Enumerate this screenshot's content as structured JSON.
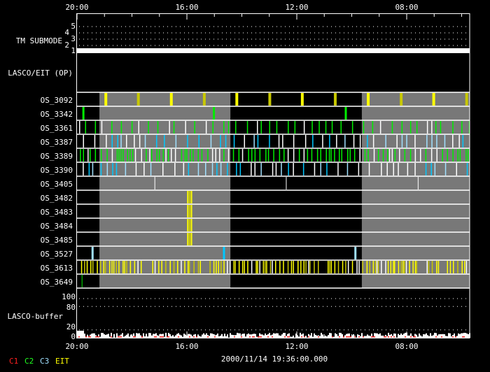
{
  "chart_data": {
    "type": "timeline",
    "time_axis": {
      "tick_labels": [
        "20:00",
        "16:00",
        "12:00",
        "08:00"
      ],
      "start": "20:00",
      "direction": "decreasing-left-to-right",
      "minor_tick_interval_hours": 1
    },
    "footer_time": "2000/11/14 19:36:00.000",
    "legend": [
      {
        "label": "C1",
        "color": "#ff2020"
      },
      {
        "label": "C2",
        "color": "#20ff20"
      },
      {
        "label": "C3",
        "color": "#a0e0ff"
      },
      {
        "label": "EIT",
        "color": "#ffff00"
      }
    ],
    "tm_submode": {
      "label": "TM SUBMODE",
      "levels": [
        "5",
        "4",
        "3",
        "2",
        "1"
      ],
      "value": 1
    },
    "lasco_eit_op": {
      "label": "LASCO/EIT (OP)"
    },
    "shaded_intervals": [
      {
        "from": "19:11",
        "to": "14:25"
      },
      {
        "from": "09:38",
        "to": "end"
      }
    ],
    "colors": {
      "shade": "#787878",
      "yellow": "#ffff00",
      "olive": "#c8c800",
      "green": "#00ee00",
      "cyan": "#00c8ff",
      "lightblue": "#a0e0ff",
      "white": "#ffffff"
    },
    "rows": [
      {
        "name": "OS_3092",
        "events": [
          "18:57",
          "17:46",
          "16:34",
          "15:22",
          "14:11",
          "12:59",
          "11:48",
          "10:36",
          "09:24",
          "08:12",
          "07:01",
          "05:49"
        ],
        "colors": [
          "yellow",
          "olive"
        ],
        "width": 4
      },
      {
        "name": "OS_3342",
        "events": [
          "19:46",
          "15:01",
          "10:13"
        ],
        "colors": [
          "green"
        ],
        "width": 3
      },
      {
        "name": "OS_3361",
        "dense": true,
        "colors": [
          "green",
          "green",
          "white"
        ],
        "spacing": 8
      },
      {
        "name": "OS_3387",
        "dense": true,
        "colors": [
          "cyan",
          "lightblue",
          "white"
        ],
        "spacing": 8
      },
      {
        "name": "OS_3389",
        "dense": true,
        "colors": [
          "green",
          "white",
          "green"
        ],
        "spacing": 4
      },
      {
        "name": "OS_3390",
        "dense": true,
        "colors": [
          "cyan",
          "lightblue",
          "white"
        ],
        "spacing": 8
      },
      {
        "name": "OS_3405",
        "events": [
          "17:10",
          "12:23",
          "07:35"
        ],
        "colors": [
          "white"
        ],
        "width": 1
      },
      {
        "name": "OS_3482",
        "events": [
          "15:58",
          "15:54",
          "15:50"
        ],
        "colors": [
          "yellow",
          "olive"
        ],
        "width": 2
      },
      {
        "name": "OS_3483",
        "events": [
          "15:58",
          "15:54",
          "15:50"
        ],
        "colors": [
          "yellow",
          "olive"
        ],
        "width": 2
      },
      {
        "name": "OS_3484",
        "events": [
          "15:58",
          "15:54",
          "15:50"
        ],
        "colors": [
          "yellow",
          "olive"
        ],
        "width": 2
      },
      {
        "name": "OS_3485",
        "events": [
          "15:58",
          "15:54",
          "15:50"
        ],
        "colors": [
          "yellow",
          "olive"
        ],
        "width": 2
      },
      {
        "name": "OS_3527",
        "events": [
          "19:26",
          "14:39",
          "09:52"
        ],
        "colors": [
          "lightblue",
          "cyan"
        ],
        "width": 3
      },
      {
        "name": "OS_3613",
        "dense": true,
        "colors": [
          "yellow",
          "yellow",
          "olive",
          "white"
        ],
        "spacing": 3
      },
      {
        "name": "OS_3649",
        "events": [
          "19:49"
        ],
        "colors": [
          "green"
        ],
        "width": 1
      }
    ],
    "lasco_buffer": {
      "label": "LASCO-buffer",
      "tick_labels": [
        "100",
        "80",
        "20",
        "0"
      ],
      "ylim": [
        0,
        100
      ],
      "typical_level": 8
    }
  }
}
